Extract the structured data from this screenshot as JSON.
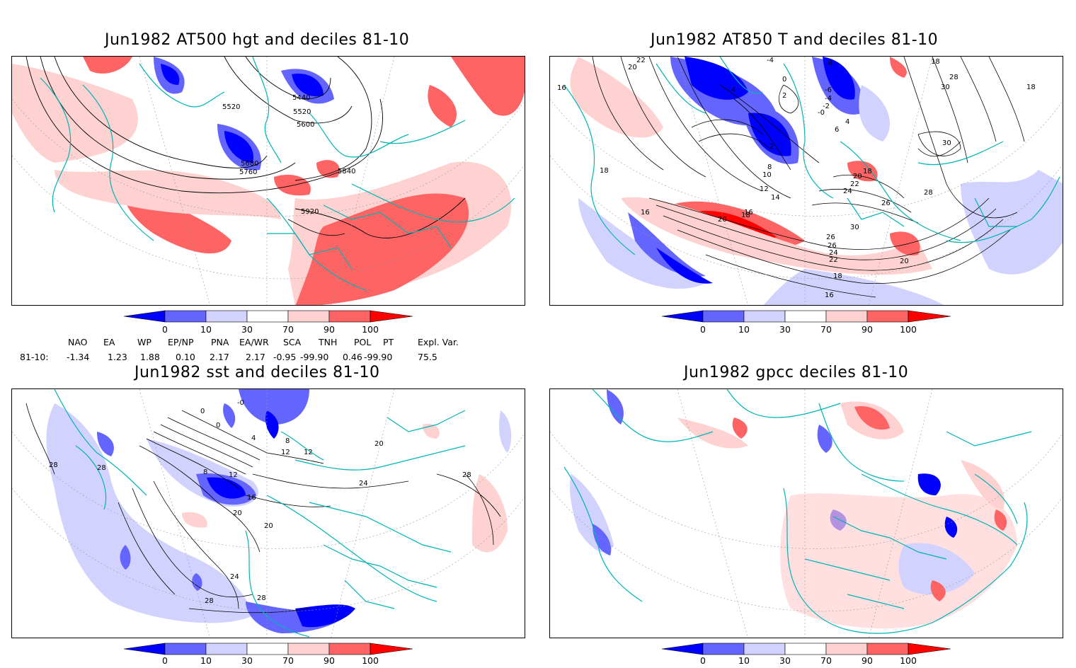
{
  "panels": [
    {
      "id": "p1",
      "title": "Jun1982 AT500 hgt and deciles 81-10",
      "contour_labels": [
        "5440",
        "5520",
        "5520",
        "5600",
        "5680",
        "5760",
        "5840",
        "5920"
      ]
    },
    {
      "id": "p2",
      "title": "Jun1982 AT850 T and deciles 81-10",
      "contour_labels": [
        "22",
        "20",
        "16",
        "-4",
        "-8",
        "18",
        "28",
        "30",
        "18",
        "0",
        "2",
        "4",
        "-6",
        "-4",
        "-2",
        "-0",
        "4",
        "6",
        "2",
        "30",
        "18",
        "8",
        "10",
        "12",
        "14",
        "20",
        "18",
        "22",
        "24",
        "26",
        "28",
        "20",
        "16",
        "18",
        "16",
        "26",
        "26",
        "24",
        "22",
        "30",
        "20",
        "18",
        "16"
      ]
    },
    {
      "id": "p3",
      "title": "Jun1982 sst and deciles 81-10",
      "contour_labels": [
        "28",
        "28",
        "0",
        "-0",
        "0",
        "4",
        "12",
        "8",
        "12",
        "16",
        "20",
        "20",
        "24",
        "28",
        "28",
        "24",
        "28",
        "20",
        "12",
        "8"
      ]
    },
    {
      "id": "p4",
      "title": "Jun1982 gpcc deciles 81-10",
      "contour_labels": []
    }
  ],
  "colorbar": {
    "ticks": [
      "0",
      "10",
      "30",
      "70",
      "90",
      "100"
    ],
    "colors": {
      "below_0": "#0000ff",
      "d0_10": "#6464ff",
      "d10_30": "#d2d2ff",
      "d30_70": "#ffffff",
      "d70_90": "#ffd2d2",
      "d90_100": "#ff6464",
      "above_100": "#ff0000"
    }
  },
  "indices": {
    "headers": [
      "NAO",
      "EA",
      "WP",
      "EP/NP",
      "PNA",
      "EA/WR",
      "SCA",
      "TNH",
      "POL",
      "PT",
      "Expl. Var."
    ],
    "row_label": "81-10:",
    "values_text": [
      "-1.34",
      "1.23",
      "1.88",
      "0.10",
      "2.17",
      "2.17",
      "-0.95",
      "-99.90",
      "0.46",
      "-99.90",
      "75.5"
    ]
  },
  "colors": {
    "coast": "#00b4b4",
    "contour": "#000000",
    "grid": "#999999"
  }
}
